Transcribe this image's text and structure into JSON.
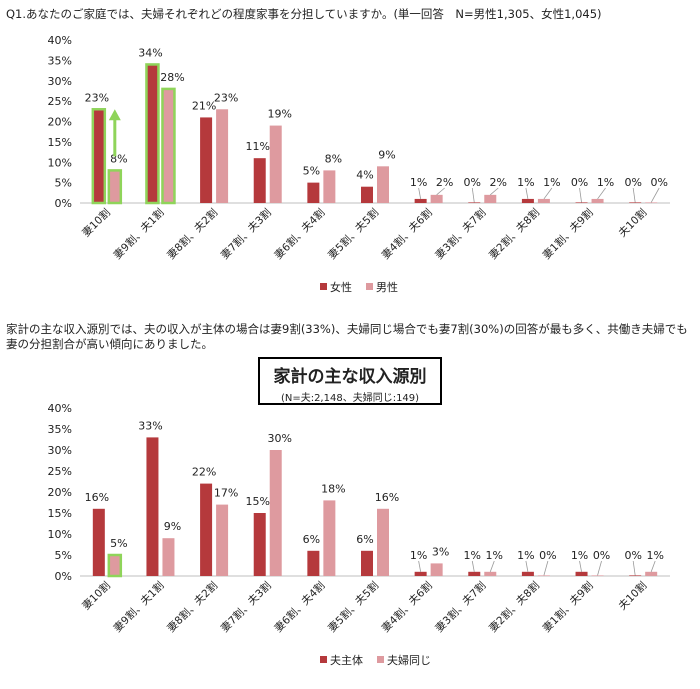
{
  "question_title": "Q1.あなたのご家庭では、夫婦それぞれどの程度家事を分担していますか。(単一回答　N=男性1,305、女性1,045)",
  "paragraph": "家計の主な収入源別では、夫の収入が主体の場合は妻9割(33%)、夫婦同じ場合でも妻7割(30%)の回答が最も多く、共働き夫婦でも妻の分担割合が高い傾向にありました。",
  "chart2_box": {
    "title": "家計の主な収入源別",
    "subtitle": "(N=夫:2,148、夫婦同じ:149)"
  },
  "colors": {
    "series_a": "#b5393c",
    "series_b": "#de9a9f",
    "highlight": "#8fd45a",
    "axis": "#bfbfbf"
  },
  "chart_data": [
    {
      "type": "bar",
      "title": "",
      "ylim": [
        0,
        40
      ],
      "yticks": [
        "0%",
        "5%",
        "10%",
        "15%",
        "20%",
        "25%",
        "30%",
        "35%",
        "40%"
      ],
      "categories": [
        "妻10割",
        "妻9割、夫1割",
        "妻8割、夫2割",
        "妻7割、夫3割",
        "妻6割、夫4割",
        "妻5割、夫5割",
        "妻4割、夫6割",
        "妻3割、夫7割",
        "妻2割、夫8割",
        "妻1割、夫9割",
        "夫10割"
      ],
      "series": [
        {
          "name": "女性",
          "values": [
            23,
            34,
            21,
            11,
            5,
            4,
            1,
            0,
            1,
            0,
            0
          ],
          "labels": [
            "23%",
            "34%",
            "21%",
            "11%",
            "5%",
            "4%",
            "1%",
            "0%",
            "1%",
            "0%",
            "0%"
          ]
        },
        {
          "name": "男性",
          "values": [
            8,
            28,
            23,
            19,
            8,
            9,
            2,
            2,
            1,
            1,
            0
          ],
          "labels": [
            "8%",
            "28%",
            "23%",
            "19%",
            "8%",
            "9%",
            "2%",
            "2%",
            "1%",
            "1%",
            "0%"
          ]
        }
      ],
      "legend": "bottom",
      "highlighted": [
        "0:0",
        "1:0",
        "0:1",
        "1:1"
      ],
      "arrow": "from 8% to 23% in 妻10割"
    },
    {
      "type": "bar",
      "title": "家計の主な収入源別",
      "ylim": [
        0,
        40
      ],
      "yticks": [
        "0%",
        "5%",
        "10%",
        "15%",
        "20%",
        "25%",
        "30%",
        "35%",
        "40%"
      ],
      "categories": [
        "妻10割",
        "妻9割、夫1割",
        "妻8割、夫2割",
        "妻7割、夫3割",
        "妻6割、夫4割",
        "妻5割、夫5割",
        "妻4割、夫6割",
        "妻3割、夫7割",
        "妻2割、夫8割",
        "妻1割、夫9割",
        "夫10割"
      ],
      "series": [
        {
          "name": "夫主体",
          "values": [
            16,
            33,
            22,
            15,
            6,
            6,
            1,
            1,
            1,
            1,
            0
          ],
          "labels": [
            "16%",
            "33%",
            "22%",
            "15%",
            "6%",
            "6%",
            "1%",
            "1%",
            "1%",
            "1%",
            "0%"
          ]
        },
        {
          "name": "夫婦同じ",
          "values": [
            5,
            9,
            17,
            30,
            18,
            16,
            3,
            1,
            0,
            0,
            1
          ],
          "labels": [
            "5%",
            "9%",
            "17%",
            "30%",
            "18%",
            "16%",
            "3%",
            "1%",
            "0%",
            "0%",
            "1%"
          ]
        }
      ],
      "legend": "bottom",
      "highlighted": [
        "1:0",
        "3:1"
      ]
    }
  ]
}
